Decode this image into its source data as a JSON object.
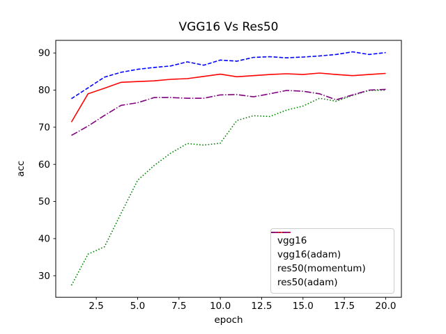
{
  "chart_data": {
    "type": "line",
    "title": "VGG16 Vs Res50",
    "xlabel": "epoch",
    "ylabel": "acc",
    "grid": false,
    "legend_position": "lower right",
    "xlim": [
      0.05,
      20.95
    ],
    "ylim": [
      24.2,
      93.4
    ],
    "xticks": {
      "values": [
        2.5,
        5.0,
        7.5,
        10.0,
        12.5,
        15.0,
        17.5,
        20.0
      ],
      "labels": [
        "2.5",
        "5.0",
        "7.5",
        "10.0",
        "12.5",
        "15.0",
        "17.5",
        "20.0"
      ]
    },
    "yticks": {
      "values": [
        30,
        40,
        50,
        60,
        70,
        80,
        90
      ],
      "labels": [
        "30",
        "40",
        "50",
        "60",
        "70",
        "80",
        "90"
      ]
    },
    "x": [
      1,
      2,
      3,
      4,
      5,
      6,
      7,
      8,
      9,
      10,
      11,
      12,
      13,
      14,
      15,
      16,
      17,
      18,
      19,
      20
    ],
    "series": [
      {
        "name": "vgg16",
        "color": "#0000ff",
        "line_style": "dashed",
        "dash": "5.6,2.4",
        "values": [
          77.7,
          80.6,
          83.5,
          84.8,
          85.6,
          86.1,
          86.5,
          87.6,
          86.7,
          88.1,
          87.8,
          88.8,
          89.0,
          88.7,
          88.9,
          89.2,
          89.6,
          90.3,
          89.6,
          90.1
        ]
      },
      {
        "name": "vgg16(adam)",
        "color": "#008000",
        "line_style": "dotted",
        "dash": "1.6,2.6",
        "values": [
          27.4,
          35.8,
          37.8,
          46.8,
          55.7,
          59.7,
          63.0,
          65.6,
          65.2,
          65.7,
          71.8,
          73.1,
          72.9,
          74.6,
          75.7,
          77.8,
          77.0,
          78.6,
          79.9,
          80.0
        ]
      },
      {
        "name": "res50(momentum)",
        "color": "#ff0000",
        "line_style": "solid",
        "dash": "",
        "values": [
          71.4,
          79.0,
          80.5,
          82.1,
          82.3,
          82.5,
          82.9,
          83.1,
          83.7,
          84.3,
          83.6,
          83.9,
          84.2,
          84.4,
          84.2,
          84.6,
          84.2,
          83.9,
          84.2,
          84.5
        ]
      },
      {
        "name": "res50(adam)",
        "color": "#800080",
        "line_style": "dashdot",
        "dash": "9.6,2.4,1.5,2.4",
        "values": [
          67.8,
          70.3,
          73.2,
          75.9,
          76.6,
          78.0,
          78.0,
          77.8,
          77.8,
          78.7,
          78.8,
          78.2,
          79.0,
          79.9,
          79.7,
          79.0,
          77.4,
          78.7,
          80.0,
          80.2
        ]
      }
    ]
  }
}
